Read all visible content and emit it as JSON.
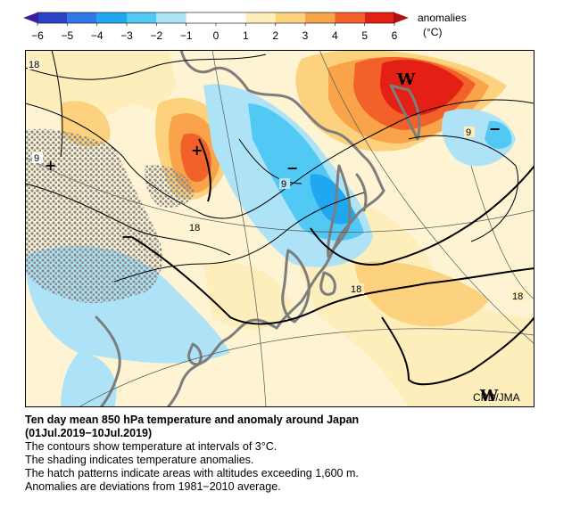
{
  "colorbar": {
    "title": "anomalies",
    "unit": "(°C)",
    "ticks": [
      "-6",
      "-5",
      "-4",
      "-3",
      "-2",
      "-1",
      "0",
      "1",
      "2",
      "3",
      "4",
      "5",
      "6"
    ],
    "bins": [
      {
        "from": -6,
        "to": -5,
        "color": "#2a43c8"
      },
      {
        "from": -5,
        "to": -4,
        "color": "#2f78e8"
      },
      {
        "from": -4,
        "to": -3,
        "color": "#1fa7f0"
      },
      {
        "from": -3,
        "to": -2,
        "color": "#52c8f5"
      },
      {
        "from": -2,
        "to": -1,
        "color": "#aee3f7"
      },
      {
        "from": -1,
        "to": 0,
        "color": "#ffffff"
      },
      {
        "from": 0,
        "to": 1,
        "color": "#ffffff"
      },
      {
        "from": 1,
        "to": 2,
        "color": "#fdeebc"
      },
      {
        "from": 2,
        "to": 3,
        "color": "#fcd27e"
      },
      {
        "from": 3,
        "to": 4,
        "color": "#f9a34b"
      },
      {
        "from": 4,
        "to": 5,
        "color": "#f2612a"
      },
      {
        "from": 5,
        "to": 6,
        "color": "#e41f14"
      }
    ]
  },
  "map": {
    "contour_labels": [
      "18",
      "9",
      "9",
      "18",
      "18",
      "18",
      "9"
    ],
    "anomaly_signs": [
      "+",
      "+",
      "−",
      "−",
      "−"
    ],
    "pressure_marks": [
      "W",
      "W"
    ],
    "credit": "CPD/JMA",
    "hatch_meaning": "altitudes exceeding 1,600 m"
  },
  "caption": {
    "title_line1": "Ten day mean 850 hPa temperature and anomaly around Japan",
    "title_line2": "(01Jul.2019−10Jul.2019)",
    "line1": "The contours show temperature at intervals of 3°C.",
    "line2": "The shading indicates temperature anomalies.",
    "line3": "The hatch patterns indicate areas with altitudes exceeding 1,600 m.",
    "line4": "Anomalies are deviations from 1981−2010 average."
  }
}
